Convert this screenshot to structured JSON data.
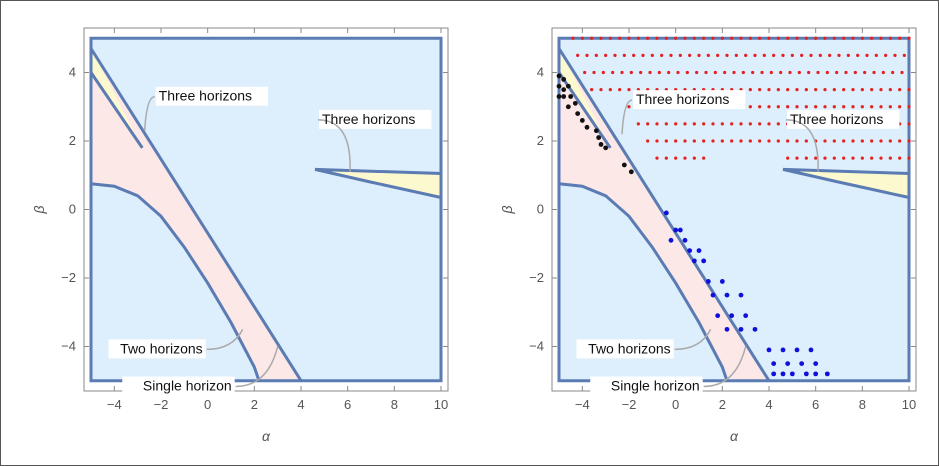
{
  "colors": {
    "three_horizon_region": "#ddeefc",
    "two_horizon_region": "#fde8e8",
    "wedge_region": "#fdf9cf",
    "boundary": "#5b7bb3",
    "frame": "#888888",
    "callout_line": "#aaaaaa",
    "red_dots": "#e52020",
    "blue_dots": "#1010dd",
    "black_dots": "#111111"
  },
  "chart_data": [
    {
      "type": "region",
      "panel": "left",
      "xlabel": "α",
      "ylabel": "β",
      "xlim": [
        -5.3,
        10.3
      ],
      "ylim": [
        -5.3,
        5.3
      ],
      "x_ticks": [
        -4,
        -2,
        0,
        2,
        4,
        6,
        8,
        10
      ],
      "y_ticks": [
        -4,
        -2,
        0,
        2,
        4
      ],
      "x_tick_labels": [
        "−4",
        "−2",
        "0",
        "2",
        "4",
        "6",
        "8",
        "10"
      ],
      "y_tick_labels": [
        "−4",
        "−2",
        "0",
        "2",
        "4"
      ],
      "regions": {
        "domain": [
          [
            -5,
            5
          ],
          [
            10,
            5
          ],
          [
            10,
            -5
          ],
          [
            -5,
            -5
          ]
        ],
        "single_horizon_lower_curve": [
          [
            -5,
            0.75
          ],
          [
            -4,
            0.68
          ],
          [
            -3,
            0.4
          ],
          [
            -2,
            -0.2
          ],
          [
            -1,
            -1.1
          ],
          [
            0,
            -2.15
          ],
          [
            1,
            -3.3
          ],
          [
            2,
            -4.6
          ],
          [
            2.2,
            -5
          ]
        ],
        "two_horizon_upper_line": [
          [
            -5,
            4.7
          ],
          [
            4,
            -5
          ]
        ],
        "three_horizon_left_wedge": [
          [
            -5,
            4.7
          ],
          [
            -5,
            4.0
          ],
          [
            -2.8,
            1.8
          ]
        ],
        "three_horizon_right_wedge": [
          [
            4.6,
            1.17
          ],
          [
            10,
            1.05
          ],
          [
            10,
            0.35
          ],
          [
            7,
            0.8
          ]
        ]
      },
      "annotations": [
        {
          "text": "Three horizons",
          "point": [
            -2.7,
            2.3
          ]
        },
        {
          "text": "Three horizons",
          "point": [
            6.1,
            1.1
          ]
        },
        {
          "text": "Two horizons",
          "point": [
            1.5,
            -3.5
          ]
        },
        {
          "text": "Single horizon",
          "point": [
            3.0,
            -4.0
          ]
        }
      ],
      "grid": false
    },
    {
      "type": "region_scatter",
      "panel": "right",
      "xlabel": "α",
      "ylabel": "β",
      "xlim": [
        -5.3,
        10.3
      ],
      "ylim": [
        -5.3,
        5.3
      ],
      "x_ticks": [
        -4,
        -2,
        0,
        2,
        4,
        6,
        8,
        10
      ],
      "y_ticks": [
        -4,
        -2,
        0,
        2,
        4
      ],
      "x_tick_labels": [
        "−4",
        "−2",
        "0",
        "2",
        "4",
        "6",
        "8",
        "10"
      ],
      "y_tick_labels": [
        "−4",
        "−2",
        "0",
        "2",
        "4"
      ],
      "regions": {
        "domain": [
          [
            -5,
            5
          ],
          [
            10,
            5
          ],
          [
            10,
            -5
          ],
          [
            -5,
            -5
          ]
        ],
        "single_horizon_lower_curve": [
          [
            -5,
            0.75
          ],
          [
            -4,
            0.68
          ],
          [
            -3,
            0.4
          ],
          [
            -2,
            -0.2
          ],
          [
            -1,
            -1.1
          ],
          [
            0,
            -2.15
          ],
          [
            1,
            -3.3
          ],
          [
            2,
            -4.6
          ],
          [
            2.2,
            -5
          ]
        ],
        "two_horizon_upper_line": [
          [
            -5,
            4.7
          ],
          [
            4,
            -5
          ]
        ],
        "three_horizon_left_wedge": [
          [
            -5,
            4.7
          ],
          [
            -5,
            4.0
          ],
          [
            -2.8,
            1.8
          ]
        ],
        "three_horizon_right_wedge": [
          [
            4.6,
            1.17
          ],
          [
            10,
            1.05
          ],
          [
            10,
            0.35
          ],
          [
            7,
            0.8
          ]
        ]
      },
      "red_rows": [
        {
          "y": 5.0,
          "x_min": -4.4,
          "x_max": 10.0
        },
        {
          "y": 4.5,
          "x_min": -4.2,
          "x_max": 10.0
        },
        {
          "y": 4.0,
          "x_min": -3.9,
          "x_max": 10.0
        },
        {
          "y": 3.5,
          "x_min": -3.6,
          "x_max": 10.0
        },
        {
          "y": 3.0,
          "x_min": -2.0,
          "x_max": 10.0
        },
        {
          "y": 2.5,
          "x_min": -1.6,
          "x_max": 10.0
        },
        {
          "y": 2.0,
          "x_min": -1.2,
          "x_max": 10.0
        },
        {
          "y": 1.5,
          "x_min": -0.8,
          "x_max": 10.0,
          "gap": [
            1.5,
            4.7
          ]
        }
      ],
      "red_step": 0.4,
      "black_points": [
        [
          -5.0,
          3.9
        ],
        [
          -4.8,
          3.8
        ],
        [
          -5.0,
          3.6
        ],
        [
          -4.8,
          3.5
        ],
        [
          -4.6,
          3.6
        ],
        [
          -5.0,
          3.3
        ],
        [
          -4.8,
          3.3
        ],
        [
          -4.5,
          3.3
        ],
        [
          -4.3,
          3.1
        ],
        [
          -4.6,
          3.0
        ],
        [
          -4.2,
          2.8
        ],
        [
          -4.0,
          2.6
        ],
        [
          -3.8,
          2.4
        ],
        [
          -3.4,
          2.3
        ],
        [
          -3.3,
          2.1
        ],
        [
          -3.2,
          1.9
        ],
        [
          -3.0,
          1.8
        ],
        [
          -2.2,
          1.3
        ],
        [
          -1.9,
          1.1
        ]
      ],
      "blue_points": [
        [
          -0.4,
          -0.1
        ],
        [
          0,
          -0.6
        ],
        [
          0.2,
          -0.6
        ],
        [
          -0.2,
          -0.9
        ],
        [
          0.4,
          -0.9
        ],
        [
          0.6,
          -1.2
        ],
        [
          1.0,
          -1.2
        ],
        [
          0.8,
          -1.5
        ],
        [
          1.2,
          -1.5
        ],
        [
          1.4,
          -2.1
        ],
        [
          2.0,
          -2.1
        ],
        [
          1.6,
          -2.5
        ],
        [
          2.2,
          -2.5
        ],
        [
          2.8,
          -2.5
        ],
        [
          1.8,
          -3.1
        ],
        [
          2.4,
          -3.1
        ],
        [
          3.0,
          -3.1
        ],
        [
          2.2,
          -3.5
        ],
        [
          2.8,
          -3.5
        ],
        [
          3.4,
          -3.5
        ],
        [
          4.0,
          -4.1
        ],
        [
          4.6,
          -4.1
        ],
        [
          5.2,
          -4.1
        ],
        [
          5.8,
          -4.1
        ],
        [
          4.2,
          -4.5
        ],
        [
          4.8,
          -4.5
        ],
        [
          5.4,
          -4.5
        ],
        [
          6.0,
          -4.5
        ],
        [
          4.2,
          -4.8
        ],
        [
          4.6,
          -4.8
        ],
        [
          5.0,
          -4.8
        ],
        [
          5.6,
          -4.8
        ],
        [
          6.0,
          -4.8
        ],
        [
          6.5,
          -4.8
        ]
      ],
      "annotations": [
        {
          "text": "Three horizons",
          "point": [
            -2.3,
            2.2
          ]
        },
        {
          "text": "Three horizons",
          "point": [
            6.1,
            1.1
          ]
        },
        {
          "text": "Two horizons",
          "point": [
            1.5,
            -3.5
          ]
        },
        {
          "text": "Single horizon",
          "point": [
            3.0,
            -4.0
          ]
        }
      ],
      "grid": false
    }
  ]
}
